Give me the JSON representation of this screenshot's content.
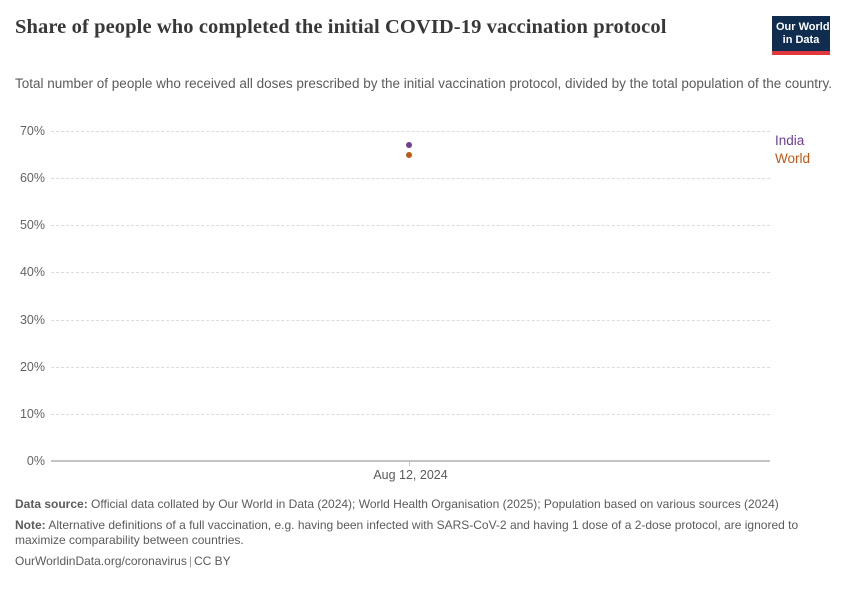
{
  "header": {
    "title": "Share of people who completed the initial COVID-19 vaccination protocol",
    "subtitle": "Total number of people who received all doses prescribed by the initial vaccination protocol, divided by the total population of the country.",
    "logo": {
      "line1": "Our World",
      "line2": "in Data",
      "bg_color": "#102d50",
      "accent_color": "#e0373f"
    }
  },
  "chart_data": {
    "type": "scatter",
    "title": "Share of people who completed the initial COVID-19 vaccination protocol",
    "xlabel": "",
    "ylabel": "",
    "ylim": [
      0,
      70
    ],
    "grid": true,
    "legend_position": "right",
    "x_ticks": [
      {
        "label": "Aug 12, 2024",
        "position": 0.5
      }
    ],
    "y_ticks": [
      {
        "value": 0,
        "label": "0%"
      },
      {
        "value": 10,
        "label": "10%"
      },
      {
        "value": 20,
        "label": "20%"
      },
      {
        "value": 30,
        "label": "30%"
      },
      {
        "value": 40,
        "label": "40%"
      },
      {
        "value": 50,
        "label": "50%"
      },
      {
        "value": 60,
        "label": "60%"
      },
      {
        "value": 70,
        "label": "70%"
      }
    ],
    "x": [
      "Aug 12, 2024"
    ],
    "series": [
      {
        "name": "India",
        "color": "#6D3E91",
        "values": [
          67
        ]
      },
      {
        "name": "World",
        "color": "#BE5915",
        "values": [
          65
        ]
      }
    ]
  },
  "footer": {
    "data_source_label": "Data source:",
    "data_source_text": " Official data collated by Our World in Data (2024); World Health Organisation (2025); Population based on various sources (2024)",
    "note_label": "Note:",
    "note_text": " Alternative definitions of a full vaccination, e.g. having been infected with SARS-CoV-2 and having 1 dose of a 2-dose protocol, are ignored to maximize comparability between countries.",
    "origin_link": "OurWorldinData.org/coronavirus",
    "separator": "|",
    "license": "CC BY"
  }
}
